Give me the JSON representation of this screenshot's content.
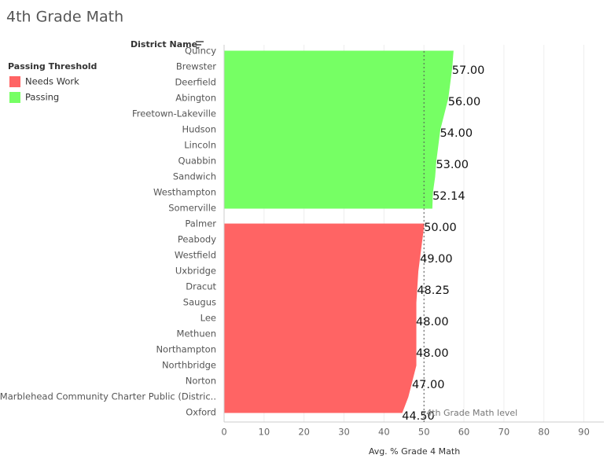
{
  "chart_data": {
    "type": "area",
    "title": "4th Grade Math",
    "y_header": "District Name",
    "x_label": "Avg. % Grade 4 Math",
    "legend_title": "Passing Threshold",
    "categories": [
      "Quincy",
      "Brewster",
      "Deerfield",
      "Abington",
      "Freetown-Lakeville",
      "Hudson",
      "Lincoln",
      "Quabbin",
      "Sandwich",
      "Westhampton",
      "Somerville",
      "Palmer",
      "Peabody",
      "Westfield",
      "Uxbridge",
      "Dracut",
      "Saugus",
      "Lee",
      "Methuen",
      "Northampton",
      "Northbridge",
      "Norton",
      "Marblehead Community Charter Public (Distric..",
      "Oxford"
    ],
    "series": [
      {
        "name": "Needs Work",
        "color": "#ff6464",
        "values": [
          null,
          null,
          null,
          null,
          null,
          null,
          null,
          null,
          null,
          null,
          null,
          50,
          49.5,
          49,
          48.5,
          48.25,
          48,
          48,
          48,
          48,
          48,
          47,
          46,
          44.5
        ],
        "value_labels": [
          null,
          null,
          null,
          null,
          null,
          null,
          null,
          null,
          null,
          null,
          null,
          "50.00",
          null,
          "49.00",
          null,
          "48.25",
          null,
          "48.00",
          null,
          "48.00",
          null,
          "47.00",
          null,
          "44.50"
        ]
      },
      {
        "name": "Passing",
        "color": "#76ff64",
        "values": [
          57.3,
          57,
          56.5,
          56,
          55,
          54,
          53.5,
          53,
          52.7,
          52.14,
          52,
          null,
          null,
          null,
          null,
          null,
          null,
          null,
          null,
          null,
          null,
          null,
          null,
          null
        ],
        "value_labels": [
          null,
          "57.00",
          null,
          "56.00",
          null,
          "54.00",
          null,
          "53.00",
          null,
          "52.14",
          null,
          null,
          null,
          null,
          null,
          null,
          null,
          null,
          null,
          null,
          null,
          null,
          null,
          null
        ]
      }
    ],
    "xlim": [
      0,
      95
    ],
    "xticks": [
      0,
      10,
      20,
      30,
      40,
      50,
      60,
      70,
      80,
      90
    ],
    "grid": true,
    "reference_line": {
      "value": 50,
      "label": "4th Grade Math level"
    }
  }
}
